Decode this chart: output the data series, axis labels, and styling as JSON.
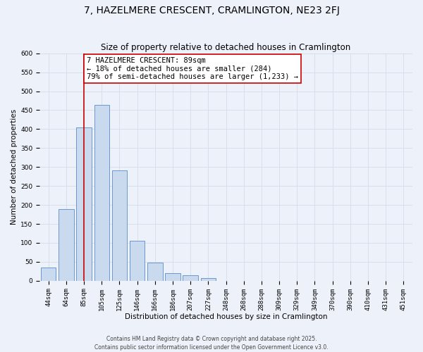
{
  "title": "7, HAZELMERE CRESCENT, CRAMLINGTON, NE23 2FJ",
  "subtitle": "Size of property relative to detached houses in Cramlington",
  "xlabel": "Distribution of detached houses by size in Cramlington",
  "ylabel": "Number of detached properties",
  "bin_labels": [
    "44sqm",
    "64sqm",
    "85sqm",
    "105sqm",
    "125sqm",
    "146sqm",
    "166sqm",
    "186sqm",
    "207sqm",
    "227sqm",
    "248sqm",
    "268sqm",
    "288sqm",
    "309sqm",
    "329sqm",
    "349sqm",
    "370sqm",
    "390sqm",
    "410sqm",
    "431sqm",
    "451sqm"
  ],
  "bar_values": [
    35,
    190,
    405,
    463,
    291,
    105,
    48,
    20,
    15,
    8,
    0,
    0,
    0,
    0,
    0,
    0,
    0,
    0,
    0,
    0,
    0
  ],
  "bar_color": "#c9d9ee",
  "bar_edge_color": "#5b8cc8",
  "ylim": [
    0,
    600
  ],
  "yticks": [
    0,
    50,
    100,
    150,
    200,
    250,
    300,
    350,
    400,
    450,
    500,
    550,
    600
  ],
  "property_label": "7 HAZELMERE CRESCENT: 89sqm",
  "vline_x_idx": 2,
  "annotation_line1": "← 18% of detached houses are smaller (284)",
  "annotation_line2": "79% of semi-detached houses are larger (1,233) →",
  "annotation_box_color": "#ffffff",
  "annotation_box_edge_color": "#cc0000",
  "vline_color": "#cc0000",
  "grid_color": "#d4dcea",
  "background_color": "#edf1f9",
  "footer1": "Contains HM Land Registry data © Crown copyright and database right 2025.",
  "footer2": "Contains public sector information licensed under the Open Government Licence v3.0.",
  "title_fontsize": 10,
  "subtitle_fontsize": 8.5,
  "axis_label_fontsize": 7.5,
  "tick_fontsize": 6.5,
  "annotation_fontsize": 7.5,
  "footer_fontsize": 5.5
}
